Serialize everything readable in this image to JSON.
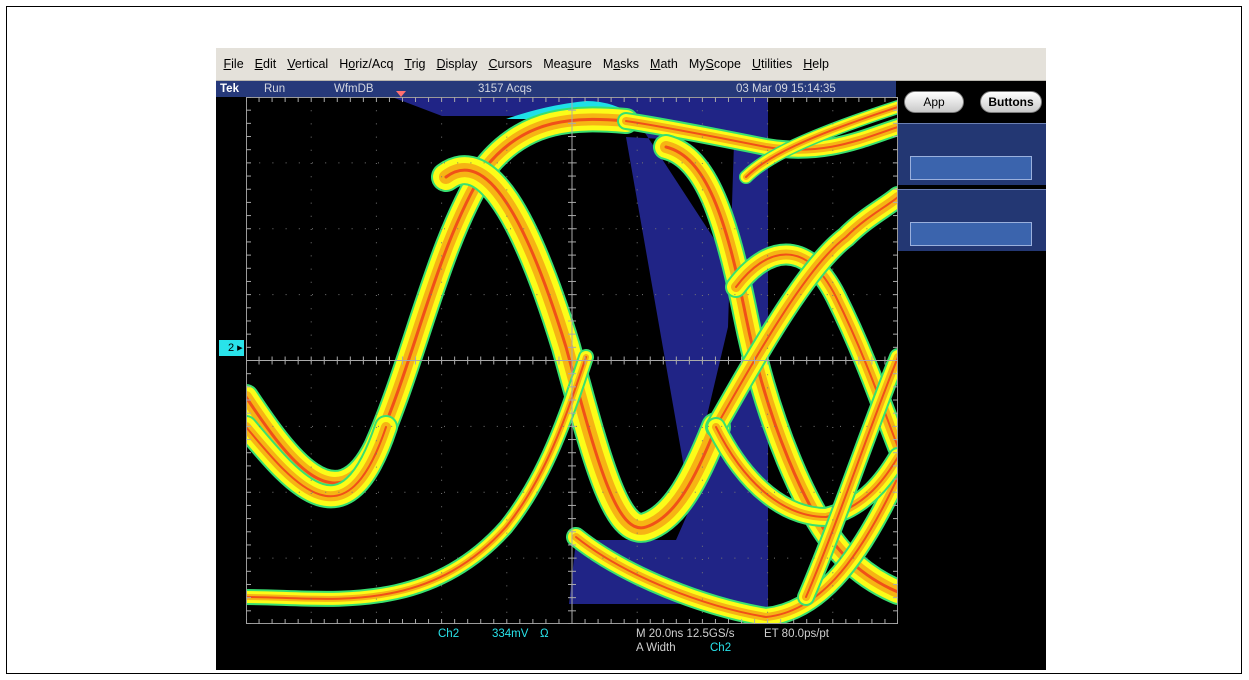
{
  "menu": [
    {
      "pre": "",
      "acc": "F",
      "post": "ile"
    },
    {
      "pre": "",
      "acc": "E",
      "post": "dit"
    },
    {
      "pre": "",
      "acc": "V",
      "post": "ertical"
    },
    {
      "pre": "H",
      "acc": "o",
      "post": "riz/Acq"
    },
    {
      "pre": "",
      "acc": "T",
      "post": "rig"
    },
    {
      "pre": "",
      "acc": "D",
      "post": "isplay"
    },
    {
      "pre": "",
      "acc": "C",
      "post": "ursors"
    },
    {
      "pre": "Mea",
      "acc": "s",
      "post": "ure"
    },
    {
      "pre": "M",
      "acc": "a",
      "post": "sks"
    },
    {
      "pre": "",
      "acc": "M",
      "post": "ath"
    },
    {
      "pre": "My",
      "acc": "S",
      "post": "cope"
    },
    {
      "pre": "",
      "acc": "U",
      "post": "tilities"
    },
    {
      "pre": "",
      "acc": "H",
      "post": "elp"
    }
  ],
  "status": {
    "brand": "Tek",
    "state": "Run",
    "mode": "WfmDB",
    "acqs": "3157 Acqs",
    "datetime": "03 Mar 09 15:14:35"
  },
  "side": {
    "app_label": "App",
    "buttons_label": "Buttons"
  },
  "channel_marker": "2",
  "readout": {
    "channel": "Ch2",
    "scale": "334mV",
    "coupling": "Ω",
    "timebase": "M 20.0ns 12.5GS/s",
    "resolution": "ET 80.0ps/pt",
    "measure": "A  Width",
    "measure_source": "Ch2"
  },
  "colors": {
    "mask": "#202486",
    "trace_core": "#f05018",
    "trace_mid": "#f6b414",
    "trace_outer": "#fcfc18",
    "trace_edge": "#38e070",
    "violation": "#1ee0e8"
  }
}
